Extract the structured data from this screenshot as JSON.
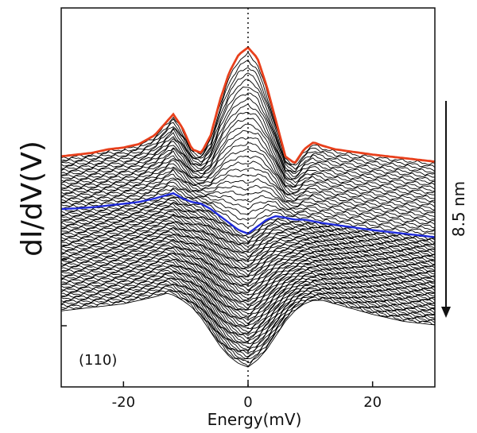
{
  "chart_data": {
    "type": "line",
    "title": "",
    "xlabel": "Energy(mV)",
    "ylabel": "dI/dV(V)",
    "xlim": [
      -30,
      30
    ],
    "xticks": [
      -20,
      0,
      20
    ],
    "xtick_labels": [
      "-20",
      "0",
      "20"
    ],
    "y_scale": "arbitrary, vertically offset",
    "grid": false,
    "annotations": {
      "panel_label": "(110)",
      "scale_bar_label": "8.5 nm",
      "zero_line": "dotted vertical line at 0 mV"
    },
    "n_traces": 90,
    "colors": {
      "first_trace": "#e8401c",
      "highlight_trace": "#1f2bdc",
      "traces": "#000000"
    },
    "series": [
      {
        "name": "",
        "role": "top trace (red)",
        "x": [
          -30,
          -27.5,
          -25,
          -22.5,
          -20,
          -17.5,
          -15,
          -13,
          -12,
          -10.5,
          -9,
          -7.5,
          -6,
          -4.5,
          -3,
          -1.5,
          0,
          1.5,
          3,
          4.5,
          6,
          7.5,
          9,
          10.5,
          12,
          14,
          16,
          18,
          20,
          22.5,
          25,
          27.5,
          30
        ],
        "y": [
          0.6,
          0.605,
          0.61,
          0.62,
          0.625,
          0.635,
          0.66,
          0.7,
          0.72,
          0.68,
          0.62,
          0.61,
          0.66,
          0.76,
          0.84,
          0.89,
          0.91,
          0.88,
          0.8,
          0.7,
          0.6,
          0.58,
          0.62,
          0.64,
          0.63,
          0.62,
          0.615,
          0.61,
          0.605,
          0.6,
          0.595,
          0.59,
          0.585
        ]
      },
      {
        "name": "",
        "role": "highlighted mid trace (blue)",
        "x": [
          -30,
          -27.5,
          -25,
          -22.5,
          -20,
          -17.5,
          -15,
          -13,
          -12,
          -10.5,
          -9,
          -7.5,
          -6,
          -4.5,
          -3,
          -1.5,
          0,
          1.5,
          3,
          4.5,
          6,
          7.5,
          9,
          10.5,
          12,
          14,
          16,
          18,
          20,
          22.5,
          25,
          27.5,
          30
        ],
        "y": [
          0.45,
          0.452,
          0.455,
          0.46,
          0.465,
          0.47,
          0.48,
          0.49,
          0.495,
          0.48,
          0.47,
          0.465,
          0.45,
          0.43,
          0.41,
          0.39,
          0.38,
          0.4,
          0.42,
          0.43,
          0.425,
          0.42,
          0.42,
          0.415,
          0.41,
          0.405,
          0.4,
          0.395,
          0.39,
          0.385,
          0.38,
          0.375,
          0.37
        ]
      },
      {
        "name": "",
        "role": "bottom trace",
        "x": [
          -30,
          -27.5,
          -25,
          -22.5,
          -20,
          -17.5,
          -15,
          -13,
          -12,
          -10.5,
          -9,
          -7.5,
          -6,
          -4.5,
          -3,
          -1.5,
          0,
          1.5,
          3,
          4.5,
          6,
          7.5,
          9,
          10.5,
          12,
          14,
          16,
          18,
          20,
          22.5,
          25,
          27.5,
          30
        ],
        "y": [
          0.16,
          0.165,
          0.17,
          0.175,
          0.18,
          0.19,
          0.2,
          0.21,
          0.205,
          0.19,
          0.17,
          0.14,
          0.1,
          0.06,
          0.03,
          0.01,
          0.0,
          0.02,
          0.05,
          0.09,
          0.13,
          0.16,
          0.18,
          0.19,
          0.19,
          0.18,
          0.17,
          0.16,
          0.15,
          0.14,
          0.13,
          0.125,
          0.12
        ]
      }
    ]
  }
}
